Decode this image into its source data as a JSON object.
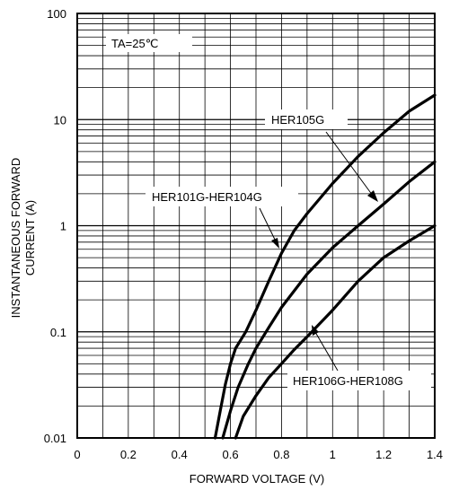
{
  "chart_data": {
    "type": "line",
    "title": "",
    "xlabel": "FORWARD VOLTAGE (V)",
    "ylabel_lines": [
      "INSTANTANEOUS FORWARD",
      "CURRENT (A)"
    ],
    "xlim": [
      0,
      1.4
    ],
    "ylim": [
      0.01,
      100
    ],
    "yscale": "log",
    "grid": true,
    "x_ticks": [
      "0",
      "0.2",
      "0.4",
      "0.6",
      "0.8",
      "1",
      "1.2",
      "1.4"
    ],
    "y_ticks": [
      "0.01",
      "0.1",
      "1",
      "10",
      "100"
    ],
    "annotation": "TA=25℃",
    "series": [
      {
        "name": "HER101G-HER104G",
        "x": [
          0.54,
          0.56,
          0.58,
          0.6,
          0.62,
          0.66,
          0.7,
          0.75,
          0.8,
          0.85,
          0.9,
          1.0,
          1.1,
          1.2,
          1.3,
          1.4
        ],
        "y": [
          0.01,
          0.018,
          0.032,
          0.05,
          0.07,
          0.1,
          0.16,
          0.3,
          0.55,
          0.9,
          1.3,
          2.5,
          4.5,
          7.5,
          12,
          17
        ]
      },
      {
        "name": "HER105G",
        "x": [
          0.57,
          0.6,
          0.63,
          0.67,
          0.7,
          0.75,
          0.8,
          0.9,
          1.0,
          1.1,
          1.2,
          1.3,
          1.4
        ],
        "y": [
          0.01,
          0.018,
          0.03,
          0.05,
          0.07,
          0.11,
          0.17,
          0.35,
          0.62,
          1.0,
          1.6,
          2.6,
          4.0
        ]
      },
      {
        "name": "HER106G-HER108G",
        "x": [
          0.62,
          0.65,
          0.7,
          0.75,
          0.8,
          0.85,
          0.9,
          1.0,
          1.1,
          1.2,
          1.3,
          1.4
        ],
        "y": [
          0.01,
          0.016,
          0.025,
          0.037,
          0.05,
          0.068,
          0.09,
          0.16,
          0.3,
          0.5,
          0.72,
          1.0
        ]
      }
    ]
  }
}
